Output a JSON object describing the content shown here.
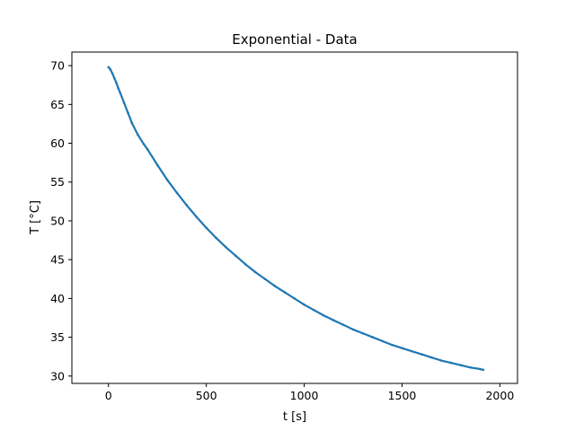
{
  "chart_data": {
    "type": "scatter",
    "title": "Exponential - Data",
    "xlabel": "t [s]",
    "ylabel": "T [°C]",
    "xlim": [
      -187,
      2090
    ],
    "ylim": [
      29.05,
      71.75
    ],
    "xticks": [
      0,
      500,
      1000,
      1500,
      2000
    ],
    "yticks": [
      30,
      35,
      40,
      45,
      50,
      55,
      60,
      65,
      70
    ],
    "grid": false,
    "color": "#1f77b4",
    "series": [
      {
        "x": [
          0,
          10,
          20,
          30,
          40,
          50,
          60,
          80,
          100,
          120,
          150,
          180,
          200,
          250,
          300,
          350,
          400,
          450,
          500,
          550,
          600,
          650,
          700,
          750,
          800,
          850,
          900,
          950,
          1000,
          1050,
          1100,
          1150,
          1200,
          1250,
          1300,
          1350,
          1400,
          1450,
          1500,
          1550,
          1600,
          1650,
          1700,
          1750,
          1800,
          1850,
          1900,
          1915
        ],
        "y": [
          69.8,
          69.5,
          69.0,
          68.4,
          67.8,
          67.1,
          66.5,
          65.2,
          63.9,
          62.6,
          61.1,
          59.9,
          59.2,
          57.2,
          55.3,
          53.6,
          52.0,
          50.5,
          49.1,
          47.8,
          46.6,
          45.5,
          44.4,
          43.4,
          42.5,
          41.6,
          40.8,
          40.0,
          39.2,
          38.5,
          37.8,
          37.2,
          36.6,
          36.0,
          35.5,
          35.0,
          34.5,
          34.0,
          33.6,
          33.2,
          32.8,
          32.4,
          32.0,
          31.7,
          31.4,
          31.1,
          30.9,
          30.8
        ]
      }
    ]
  }
}
